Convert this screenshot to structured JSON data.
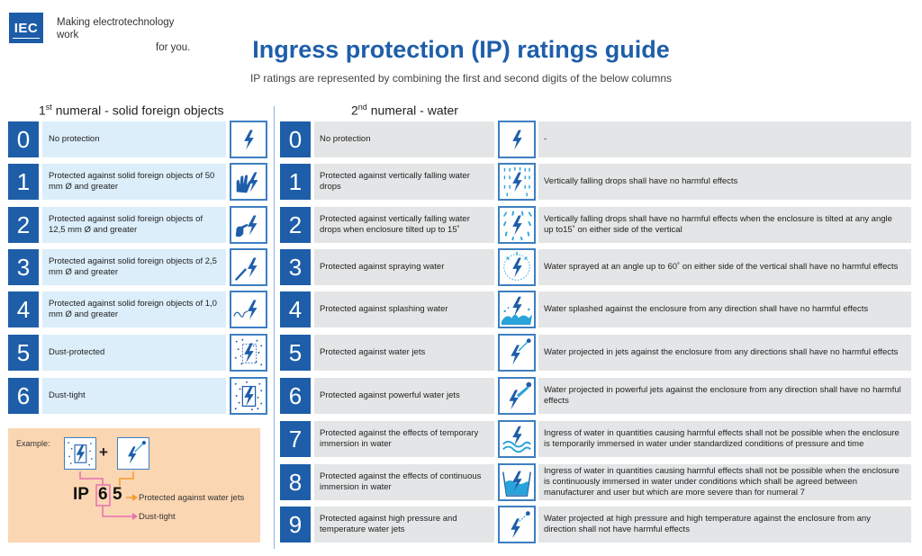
{
  "header": {
    "logo_text": "IEC",
    "tagline_line1": "Making  electrotechnology work",
    "tagline_line2": "for you.",
    "title": "Ingress protection (IP) ratings guide",
    "subtitle": "IP ratings are represented by combining the first and second digits of the below columns"
  },
  "solids": {
    "heading_num": "1",
    "heading_sup": "st",
    "heading_rest": " numeral - solid foreign objects",
    "items": [
      {
        "num": "0",
        "label": "No protection",
        "icon": "lightning-icon"
      },
      {
        "num": "1",
        "label": "Protected against solid foreign objects of 50 mm Ø and greater",
        "icon": "hand-icon"
      },
      {
        "num": "2",
        "label": "Protected against solid foreign objects of 12,5 mm Ø and greater",
        "icon": "finger-icon"
      },
      {
        "num": "3",
        "label": "Protected against solid foreign objects of 2,5 mm Ø and greater",
        "icon": "tool-icon"
      },
      {
        "num": "4",
        "label": "Protected against solid foreign objects of 1,0 mm Ø and greater",
        "icon": "wire-icon"
      },
      {
        "num": "5",
        "label": "Dust-protected",
        "icon": "dust-icon"
      },
      {
        "num": "6",
        "label": "Dust-tight",
        "icon": "dust-tight-icon"
      }
    ]
  },
  "water": {
    "heading_num": "2",
    "heading_sup": "nd",
    "heading_rest": " numeral - water",
    "items": [
      {
        "num": "0",
        "label": "No protection",
        "desc": "-",
        "icon": "lightning-icon"
      },
      {
        "num": "1",
        "label": "Protected against vertically falling water drops",
        "desc": "Vertically falling drops shall have no harmful effects",
        "icon": "vertical-drops-icon"
      },
      {
        "num": "2",
        "label": "Protected against vertically falling water drops when enclosure tilted up to 15˚",
        "desc": "Vertically falling drops shall have no harmful effects when the enclosure is tilted at any angle up to15˚ on either side of the vertical",
        "icon": "tilted-drops-icon"
      },
      {
        "num": "3",
        "label": "Protected against spraying water",
        "desc": "Water sprayed at an angle up to 60˚ on either side of the vertical shall have no harmful effects",
        "icon": "spraying-water-icon"
      },
      {
        "num": "4",
        "label": "Protected against splashing water",
        "desc": "Water splashed against the enclosure from any direction shall have no harmful effects",
        "icon": "splashing-water-icon"
      },
      {
        "num": "5",
        "label": "Protected against water jets",
        "desc": "Water projected in jets against the enclosure from any directions shall have no harmful effects",
        "icon": "water-jet-icon"
      },
      {
        "num": "6",
        "label": "Protected against powerful water jets",
        "desc": "Water projected in powerful jets against the enclosure from any direction shall have no harmful effects",
        "icon": "powerful-jet-icon"
      },
      {
        "num": "7",
        "label": "Protected against the effects of temporary immersion in water",
        "desc": "Ingress of water in quantities causing harmful effects shall not be possible when the enclosure is temporarily immersed in water under standardized conditions of pressure and time",
        "icon": "temporary-immersion-icon"
      },
      {
        "num": "8",
        "label": "Protected against the effects of continuous immersion in water",
        "desc": "Ingress of water in quantities causing harmful effects shall not be possible when the enclosure is continuously immersed in water under conditions which shall be agreed between manufacturer and user but which are more severe than for numeral 7",
        "icon": "continuous-immersion-icon"
      },
      {
        "num": "9",
        "label": "Protected against high pressure and temperature water jets",
        "desc": "Water projected at high pressure and high temperature against the enclosure from any direction shall not have harmful effects",
        "icon": "high-pressure-jet-icon"
      }
    ]
  },
  "example": {
    "label": "Example:",
    "plus": "+",
    "ip": "IP",
    "digit1": "6",
    "digit2": "5",
    "text_digit2": "Protected against water jets",
    "text_digit1": "Dust-tight"
  },
  "colors": {
    "brand_blue": "#1e5ea9",
    "label_blue_bg": "#dbeefa",
    "label_grey_bg": "#e4e5e6",
    "example_bg": "#fbd6b2",
    "connector_pink": "#e86fb5",
    "connector_orange": "#f39b2d"
  }
}
